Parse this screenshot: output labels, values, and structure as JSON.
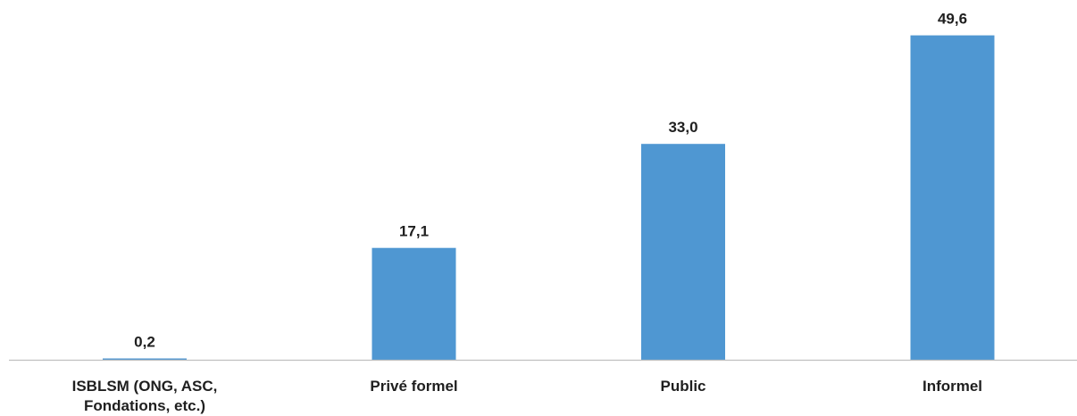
{
  "chart_data": {
    "type": "bar",
    "categories": [
      [
        "ISBLSM (ONG, ASC,",
        "Fondations, etc.)"
      ],
      [
        "Privé formel"
      ],
      [
        "Public"
      ],
      [
        "Informel"
      ]
    ],
    "values": [
      0.2,
      17.1,
      33.0,
      49.6
    ],
    "value_labels": [
      "0,2",
      "17,1",
      "33,0",
      "49,6"
    ],
    "title": "",
    "xlabel": "",
    "ylabel": "",
    "ylim": [
      0,
      55
    ],
    "grid": false,
    "legend": "none",
    "bar_color": "#4f97d2",
    "axis_color": "#bfbfbf",
    "label_color": "#1f1f1f"
  }
}
